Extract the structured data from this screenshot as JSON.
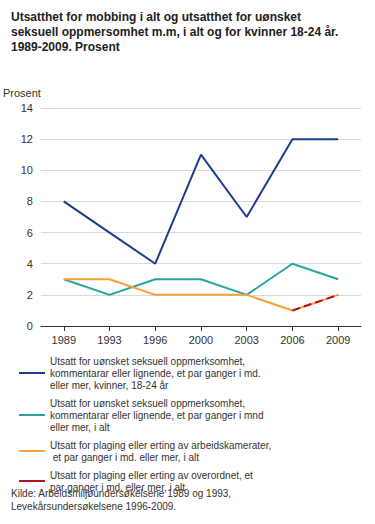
{
  "chart_data": {
    "type": "line",
    "title": "Utsatthet for mobbing i alt og utsatthet for uønsket seksuell oppmersomhet m.m, i alt og for kvinner 18-24 år. 1989-2009. Prosent",
    "y_label": "Prosent",
    "source": "Kilde: Arbeidsmiljøundersøkelsene 1989 og 1993, Levekårsundersøkelsene 1996-2009.",
    "categories": [
      "1989",
      "1993",
      "1996",
      "2000",
      "2003",
      "2006",
      "2009"
    ],
    "series": [
      {
        "name": "Utsatt for uønsket seksuell oppmerksomhet, kommentarar eller lignende, et par ganger i md. eller mer, kvinner, 18-24 år",
        "color": "#1c3c8e",
        "line_style": "solid",
        "values": [
          8,
          6,
          4,
          11,
          7,
          12,
          12
        ]
      },
      {
        "name": "Utsatt for uønsket seksuell oppmerksomhet, kommentarar eller lignende, et par ganger i mnd eller mer, i alt",
        "color": "#2aa3a3",
        "line_style": "solid",
        "values": [
          3,
          2,
          3,
          3,
          2,
          4,
          3
        ]
      },
      {
        "name": "Utsatt for plaging eller erting av arbeidskamerater, et par ganger i md. eller mer, i alt",
        "color": "#f5a13a",
        "line_style": "solid",
        "values": [
          3,
          3,
          2,
          2,
          2,
          1,
          2
        ]
      },
      {
        "name": "Utsatt for plaging eller erting av overordnet, et par ganger i md. eller mer, i alt",
        "color": "#b3141c",
        "line_style": "dashed",
        "values": [
          null,
          null,
          null,
          null,
          null,
          1,
          2
        ]
      }
    ],
    "ylim": [
      0,
      14
    ],
    "yticks": [
      0,
      2,
      4,
      6,
      8,
      10,
      12,
      14
    ],
    "grid": true,
    "legend": "bottom",
    "marker": "none"
  }
}
